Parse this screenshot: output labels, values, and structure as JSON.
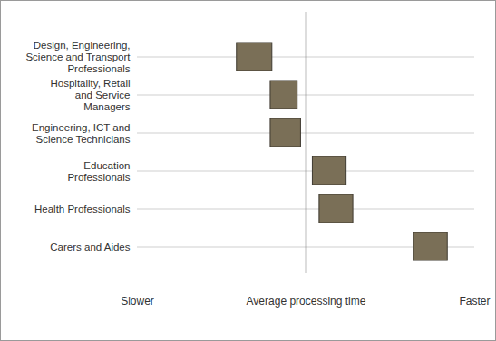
{
  "chart_data": {
    "type": "range_bar",
    "orientation": "horizontal",
    "categories": [
      "Design, Engineering,\nScience and Transport\nProfessionals",
      "Hospitality, Retail\nand Service\nManagers",
      "Engineering, ICT and\nScience Technicians",
      "Education\nProfessionals",
      "Health Professionals",
      "Carers and Aides"
    ],
    "low": [
      -0.41,
      -0.21,
      -0.21,
      0.04,
      0.08,
      0.64
    ],
    "high": [
      -0.2,
      -0.05,
      -0.03,
      0.24,
      0.28,
      0.84
    ],
    "average": 0,
    "color": "#7a6f57",
    "xlim": [
      -1,
      1
    ],
    "xticks": [
      {
        "value": -1,
        "label": "Slower"
      },
      {
        "value": 0,
        "label": "Average processing time"
      },
      {
        "value": 1,
        "label": "Faster"
      }
    ],
    "grid": true
  }
}
